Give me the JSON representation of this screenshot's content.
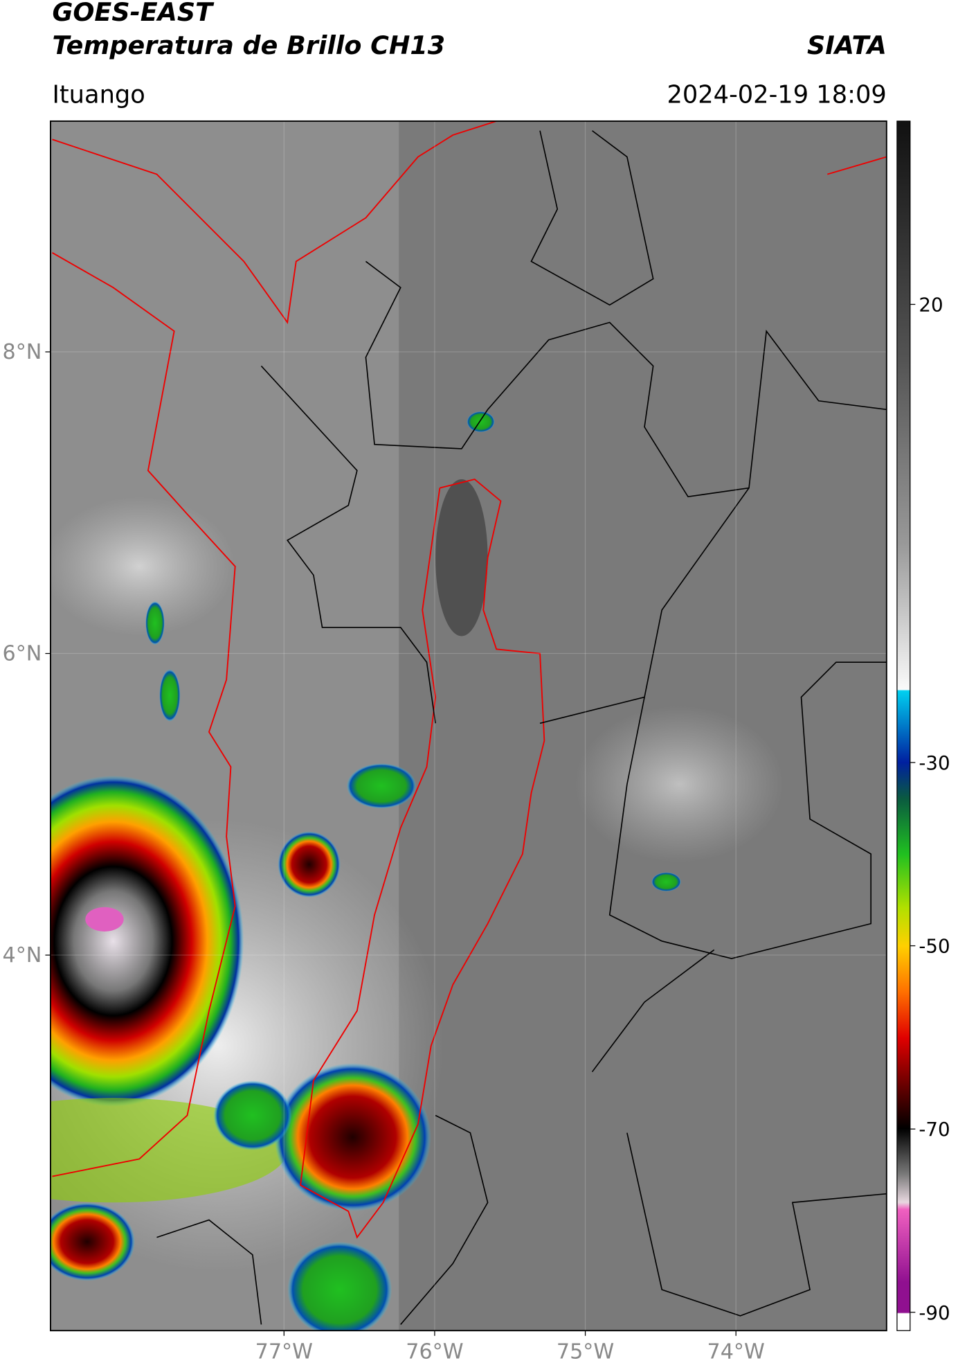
{
  "header": {
    "title_line1": "GOES-EAST",
    "title_line2": "Temperatura de Brillo CH13",
    "source": "SIATA",
    "location": "Ituango",
    "timestamp": "2024-02-19 18:09"
  },
  "map": {
    "lon_range": [
      -78.55,
      -73.0
    ],
    "lat_range": [
      1.51,
      9.53
    ],
    "lon_ticks": [
      {
        "value": -77,
        "label": "77°W"
      },
      {
        "value": -76,
        "label": "76°W"
      },
      {
        "value": -75,
        "label": "75°W"
      },
      {
        "value": -74,
        "label": "74°W"
      }
    ],
    "lat_ticks": [
      {
        "value": 8,
        "label": "8°N"
      },
      {
        "value": 6,
        "label": "6°N"
      },
      {
        "value": 4,
        "label": "4°N"
      }
    ]
  },
  "colorbar": {
    "range": [
      -92,
      40
    ],
    "ticks": [
      20,
      -30,
      -50,
      -70,
      -90
    ]
  }
}
